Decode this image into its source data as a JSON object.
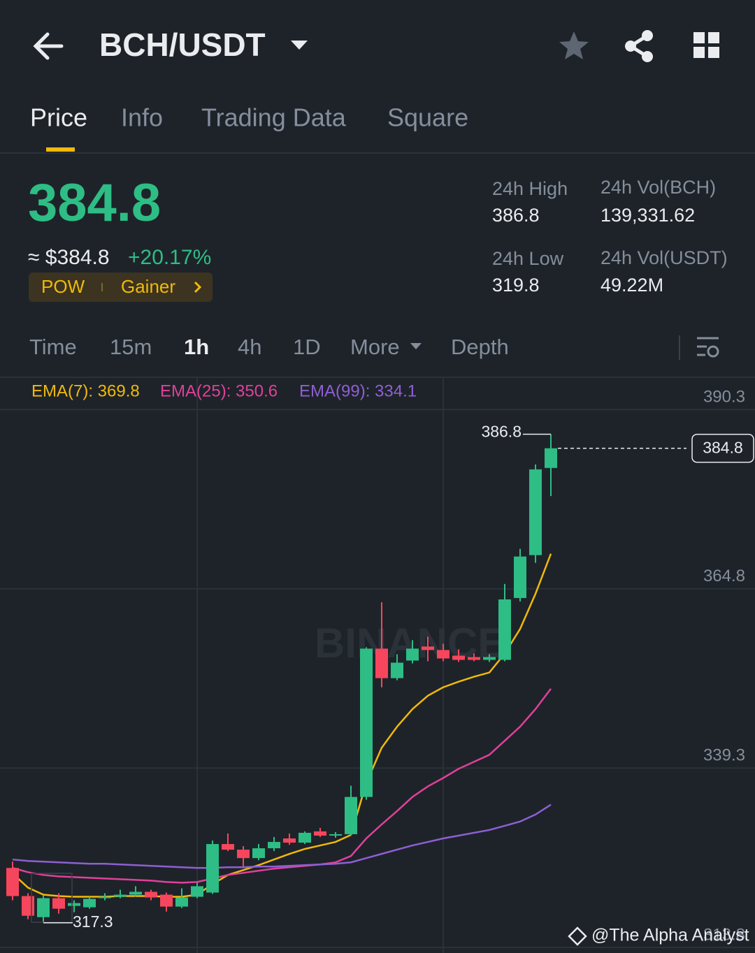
{
  "header": {
    "pair": "BCH/USDT"
  },
  "tabs": [
    "Price",
    "Info",
    "Trading Data",
    "Square"
  ],
  "price": {
    "last": 384.8,
    "fiat": "≈ $384.8",
    "change": "+20.17%",
    "tags": [
      "POW",
      "Gainer"
    ]
  },
  "stats": [
    {
      "label": "24h High",
      "value": "386.8"
    },
    {
      "label": "24h Vol(BCH)",
      "value": "139,331.62"
    },
    {
      "label": "24h Low",
      "value": "319.8"
    },
    {
      "label": "24h Vol(USDT)",
      "value": "49.22M"
    }
  ],
  "intervals": [
    "Time",
    "15m",
    "1h",
    "4h",
    "1D",
    "More",
    "Depth"
  ],
  "chart_data": {
    "type": "candlestick",
    "ylim": [
      313.0,
      394.9
    ],
    "yticks": [
      390.3,
      364.8,
      339.3,
      313.8
    ],
    "up_color": "#2ebd85",
    "down_color": "#f6465d",
    "open": [
      325.1,
      321.1,
      318.1,
      320.8,
      319.7,
      319.5,
      320.8,
      321.0,
      321.3,
      321.7,
      321.3,
      319.6,
      321.0,
      321.6,
      328.5,
      327.7,
      326.5,
      327.9,
      329.3,
      328.7,
      330.3,
      329.7,
      329.9,
      335.2,
      356.3,
      352.1,
      354.6,
      356.6,
      356.1,
      355.3,
      355.1,
      354.7,
      354.7,
      363.5,
      369.6,
      382.0
    ],
    "high": [
      326.0,
      321.5,
      321.2,
      321.5,
      320.5,
      321.0,
      321.5,
      322.0,
      322.5,
      322.0,
      321.6,
      322.2,
      323.0,
      329.0,
      330.0,
      328.2,
      328.5,
      329.5,
      330.0,
      330.3,
      330.8,
      330.2,
      336.8,
      356.5,
      362.9,
      355.5,
      357.5,
      358.0,
      357.0,
      356.2,
      355.6,
      355.5,
      365.5,
      370.5,
      382.5,
      386.8
    ],
    "low": [
      320.5,
      317.8,
      317.3,
      318.6,
      318.8,
      319.3,
      320.5,
      320.8,
      321.0,
      320.5,
      318.9,
      319.4,
      320.8,
      321.4,
      327.5,
      325.3,
      326.2,
      327.5,
      328.4,
      328.5,
      329.5,
      329.4,
      329.7,
      334.8,
      350.8,
      351.8,
      354.2,
      354.5,
      354.5,
      354.4,
      354.5,
      354.4,
      354.5,
      363.0,
      368.5,
      378.0
    ],
    "close": [
      321.1,
      318.3,
      320.8,
      319.3,
      320.1,
      320.7,
      321.0,
      321.3,
      321.7,
      320.9,
      319.6,
      320.9,
      322.5,
      328.5,
      327.7,
      326.5,
      327.9,
      328.8,
      328.7,
      330.1,
      329.7,
      329.9,
      335.2,
      356.3,
      352.1,
      354.3,
      356.3,
      356.1,
      354.9,
      354.7,
      354.7,
      355.1,
      363.3,
      369.4,
      381.8,
      384.8
    ],
    "series": [
      {
        "name": "EMA(7): 369.8",
        "color": "#f0b90b",
        "values": [
          324.3,
          322.3,
          321.3,
          321.1,
          321.0,
          321.0,
          321.0,
          321.1,
          321.1,
          321.1,
          321.0,
          321.0,
          321.3,
          322.8,
          324.1,
          324.8,
          325.5,
          326.3,
          327.1,
          327.8,
          328.3,
          328.8,
          329.8,
          337.2,
          342.2,
          345.2,
          347.7,
          349.6,
          350.8,
          351.6,
          352.3,
          352.9,
          355.6,
          359.1,
          364.1,
          369.8
        ]
      },
      {
        "name": "EMA(25): 350.6",
        "color": "#e0409c",
        "values": [
          325.1,
          324.5,
          324.1,
          323.9,
          323.8,
          323.7,
          323.6,
          323.5,
          323.4,
          323.3,
          323.1,
          323.0,
          323.1,
          323.6,
          324.1,
          324.4,
          324.7,
          325.0,
          325.2,
          325.4,
          325.6,
          325.9,
          326.8,
          329.3,
          331.3,
          333.2,
          335.2,
          336.7,
          337.9,
          339.2,
          340.2,
          341.2,
          343.2,
          345.2,
          347.7,
          350.6
        ]
      },
      {
        "name": "EMA(99): 334.1",
        "color": "#8e5fd4",
        "values": [
          326.3,
          326.1,
          326.0,
          325.9,
          325.8,
          325.7,
          325.7,
          325.6,
          325.5,
          325.4,
          325.3,
          325.2,
          325.1,
          325.1,
          325.2,
          325.2,
          325.3,
          325.3,
          325.4,
          325.5,
          325.6,
          325.7,
          325.9,
          326.5,
          327.1,
          327.7,
          328.3,
          328.8,
          329.3,
          329.7,
          330.1,
          330.5,
          331.1,
          331.7,
          332.7,
          334.1
        ]
      }
    ],
    "high_label": 386.8,
    "low_label": 317.3,
    "last_price": 384.8,
    "watermark": "BINANCE"
  },
  "footer": "@The Alpha Analyst"
}
